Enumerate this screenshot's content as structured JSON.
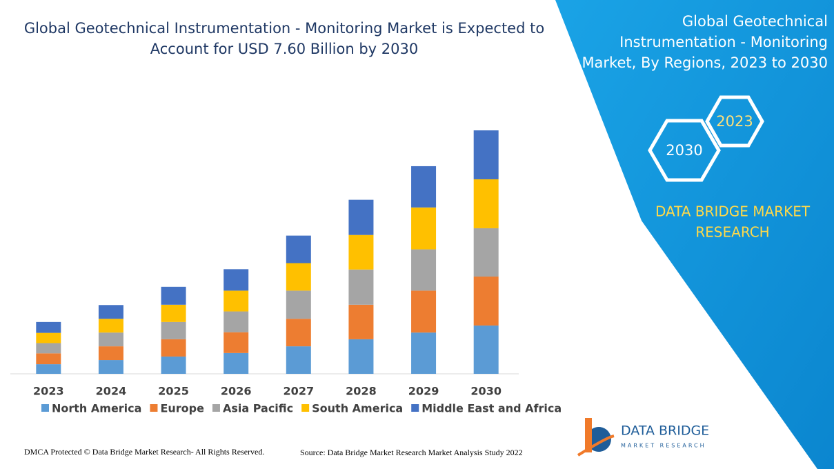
{
  "chart_data": {
    "type": "stacked_bar",
    "title": [
      "Global Geotechnical Instrumentation - Monitoring Market is Expected to",
      "Account for USD 7.60 Billion by 2030"
    ],
    "categories": [
      "2023",
      "2024",
      "2025",
      "2026",
      "2027",
      "2028",
      "2029",
      "2030"
    ],
    "series": [
      {
        "name": "North America",
        "color": "#5b9bd5",
        "values": [
          0.3,
          0.43,
          0.54,
          0.65,
          0.86,
          1.08,
          1.29,
          1.51
        ]
      },
      {
        "name": "Europe",
        "color": "#ed7d31",
        "values": [
          0.34,
          0.43,
          0.54,
          0.65,
          0.86,
          1.08,
          1.31,
          1.53
        ]
      },
      {
        "name": "Asia Pacific",
        "color": "#a5a5a5",
        "values": [
          0.32,
          0.43,
          0.54,
          0.65,
          0.88,
          1.1,
          1.29,
          1.51
        ]
      },
      {
        "name": "South America",
        "color": "#ffc000",
        "values": [
          0.32,
          0.43,
          0.54,
          0.65,
          0.86,
          1.08,
          1.31,
          1.53
        ]
      },
      {
        "name": "Middle East and Africa",
        "color": "#4472c4",
        "values": [
          0.34,
          0.43,
          0.56,
          0.67,
          0.86,
          1.1,
          1.29,
          1.53
        ]
      }
    ],
    "legend": "bottom"
  },
  "side_panel": {
    "title": [
      "Global Geotechnical",
      "Instrumentation - Monitoring",
      "Market, By Regions, 2023 to 2030"
    ],
    "hex_years": [
      "2023",
      "2030"
    ],
    "brand": [
      "DATA BRIDGE MARKET",
      "RESEARCH"
    ]
  },
  "logo": {
    "name": "DATA BRIDGE",
    "tagline": "MARKET RESEARCH"
  },
  "footer": {
    "copyright": "DMCA Protected © Data Bridge Market Research- All Rights Reserved.",
    "source": "Source: Data Bridge Market Research Market Analysis Study 2022"
  }
}
